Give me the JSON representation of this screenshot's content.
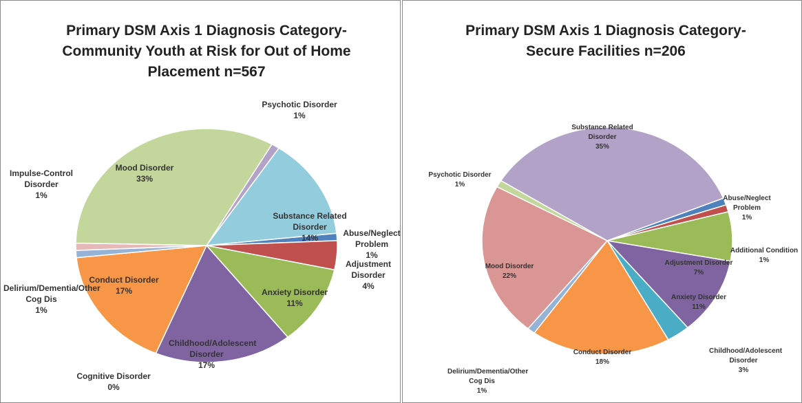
{
  "chart_data": [
    {
      "type": "pie",
      "title": "Primary DSM Axis 1 Diagnosis Category-Community Youth at Risk for Out of Home Placement n=567",
      "categories": [
        "Psychotic Disorder",
        "Substance Related Disorder",
        "Abuse/Neglect Problem",
        "Adjustment Disorder",
        "Anxiety Disorder",
        "Childhood/Adolescent Disorder",
        "Cognitive Disorder",
        "Conduct Disorder",
        "Delirium/Dementia/Other Cog Dis",
        "Impulse-Control Disorder",
        "Mood Disorder"
      ],
      "values": [
        1,
        14,
        1,
        4,
        11,
        17,
        0,
        17,
        1,
        1,
        33
      ],
      "value_labels": [
        "1%",
        "14%",
        "1%",
        "4%",
        "11%",
        "17%",
        "0%",
        "17%",
        "1%",
        "1%",
        "33%"
      ],
      "colors": [
        "#b3a2c7",
        "#93cddd",
        "#4f81bd",
        "#c0504d",
        "#9bbb59",
        "#8064a2",
        "#4bacc6",
        "#f79646",
        "#95b3d7",
        "#e6b9b8",
        "#c3d69b"
      ]
    },
    {
      "type": "pie",
      "title": "Primary DSM Axis 1 Diagnosis Category-Secure Facilities n=206",
      "categories": [
        "Abuse/Neglect Problem",
        "Additional Condition",
        "Adjustment Disorder",
        "Anxiety Disorder",
        "Childhood/Adolescent Disorder",
        "Conduct Disorder",
        "Delirium/Dementia/Other Cog Dis",
        "Mood Disorder",
        "Psychotic Disorder",
        "Substance Related Disorder"
      ],
      "values": [
        1,
        1,
        7,
        11,
        3,
        18,
        1,
        22,
        1,
        35
      ],
      "value_labels": [
        "1%",
        "1%",
        "7%",
        "11%",
        "3%",
        "18%",
        "1%",
        "22%",
        "1%",
        "35%"
      ],
      "colors": [
        "#4f81bd",
        "#c0504d",
        "#9bbb59",
        "#8064a2",
        "#4bacc6",
        "#f79646",
        "#95b3d7",
        "#d99694",
        "#c3d69b",
        "#b3a2c7"
      ]
    }
  ]
}
